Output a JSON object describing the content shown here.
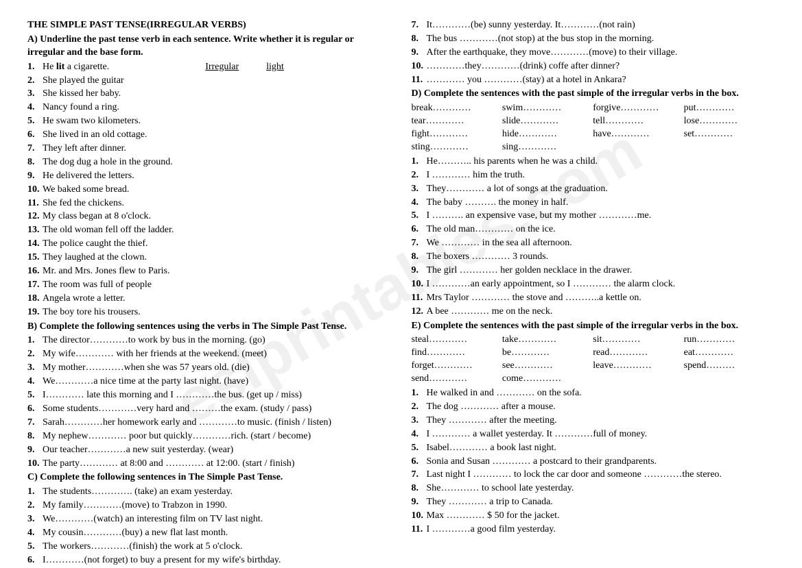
{
  "title": "THE SIMPLE PAST TENSE(IRREGULAR VERBS)",
  "sectionA": {
    "head": "A) Underline the past tense verb in each sentence. Write whether it is regular or irregular and the base form.",
    "example_label1": "Irregular",
    "example_label2": "light",
    "items": [
      "He lit a cigarette.",
      "She played the guitar",
      "She kissed her baby.",
      "Nancy found a ring.",
      "He swam two kilometers.",
      "She lived in an old cottage.",
      "They left after dinner.",
      "The dog dug a hole in the ground.",
      "He delivered the letters.",
      "We baked some bread.",
      "She fed the chickens.",
      "My class began at 8 o'clock.",
      "The old woman fell off the ladder.",
      "The police caught the thief.",
      "They laughed at the clown.",
      "Mr. and Mrs. Jones flew to Paris.",
      "The room was full of people",
      "Angela wrote a letter.",
      "The boy tore his trousers."
    ]
  },
  "sectionB": {
    "head": "B) Complete the following sentences using the verbs in The Simple Past Tense.",
    "items": [
      "The director…………to work by bus in the morning. (go)",
      "My wife………… with her friends at the weekend. (meet)",
      "My mother…………when she was 57 years old. (die)",
      "We…………a nice time at the party last night. (have)",
      "I………… late this morning and I …………the bus. (get up / miss)",
      "Some students…………very hard and ………the exam. (study / pass)",
      "Sarah…………her homework early and …………to music. (finish / listen)",
      "My nephew………… poor but quickly…………rich. (start / become)",
      "Our teacher…………a new suit yesterday. (wear)",
      "The party………… at 8:00 and ………… at 12:00. (start / finish)"
    ]
  },
  "sectionC": {
    "head": "C) Complete the following sentences in The Simple Past Tense.",
    "left_items": [
      "The students…………. (take) an exam yesterday.",
      "My family…………(move) to Trabzon in 1990.",
      "We…………(watch) an interesting film on TV last night.",
      "My cousin…………(buy) a new flat last month.",
      "The workers…………(finish) the work at 5 o'clock.",
      "I…………(not forget) to buy a present for my wife's birthday."
    ],
    "right_items": [
      "It…………(be) sunny yesterday. It…………(not rain)",
      "The bus …………(not stop) at the bus stop in the morning.",
      "After the earthquake, they move…………(move) to their village.",
      "…………they…………(drink) coffe after dinner?",
      "………… you …………(stay) at a hotel in Ankara?"
    ]
  },
  "sectionD": {
    "head": "D) Complete the sentences with the past simple of the irregular verbs in the box.",
    "verbs": [
      "break…………",
      "swim…………",
      "forgive…………",
      "put…………",
      "tear…………",
      "slide…………",
      "tell…………",
      "lose…………",
      "fight…………",
      "hide…………",
      "have…………",
      "set…………",
      "sting…………",
      "sing…………"
    ],
    "items": [
      "He……….. his parents when he was a child.",
      "I ………… him the truth.",
      "They………… a lot of songs at the graduation.",
      "The baby ………. the money in half.",
      "I ………. an expensive vase, but my mother …………me.",
      "The old man………… on the ice.",
      "We ………… in the sea all afternoon.",
      "The boxers ………… 3 rounds.",
      "The girl ………… her golden necklace in the drawer.",
      "I …………an early appointment, so I ………… the alarm clock.",
      "Mrs Taylor ………… the stove and ………..a kettle on.",
      "A bee ………… me on the neck."
    ]
  },
  "sectionE": {
    "head": "E) Complete the sentences with the past simple of the irregular verbs in the box.",
    "verbs": [
      "steal…………",
      "take…………",
      "sit…………",
      "run…………",
      "find…………",
      "be…………",
      "read…………",
      "eat…………",
      "forget…………",
      "see…………",
      "leave…………",
      "spend………",
      "send…………",
      "come…………"
    ],
    "items": [
      "He walked in and ………… on the sofa.",
      "The dog ………… after a mouse.",
      "They ………… after the meeting.",
      "I ………… a wallet yesterday. It …………full of money.",
      "Isabel………… a book last night.",
      "Sonia and Susan ………… a postcard to their grandparents.",
      "Last night I ………… to lock the car door and someone …………the stereo.",
      "She………… to school late yesterday.",
      "They ………… a trip to Canada.",
      "Max ………… $ 50 for the jacket.",
      "I …………a good film yesterday."
    ]
  }
}
